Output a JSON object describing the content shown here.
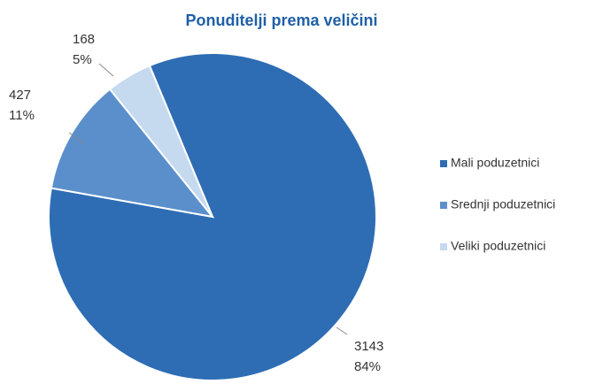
{
  "chart_data": {
    "type": "pie",
    "title": "Ponuditelji prema veličini",
    "categories": [
      "Mali poduzetnici",
      "Srednji poduzetnici",
      "Veliki poduzetnici"
    ],
    "values": [
      3143,
      427,
      168
    ],
    "percent_labels": [
      "84%",
      "11%",
      "5%"
    ],
    "colors": [
      "#2e6db4",
      "#5a8fcb",
      "#c5d9ef"
    ],
    "legend": "right"
  }
}
